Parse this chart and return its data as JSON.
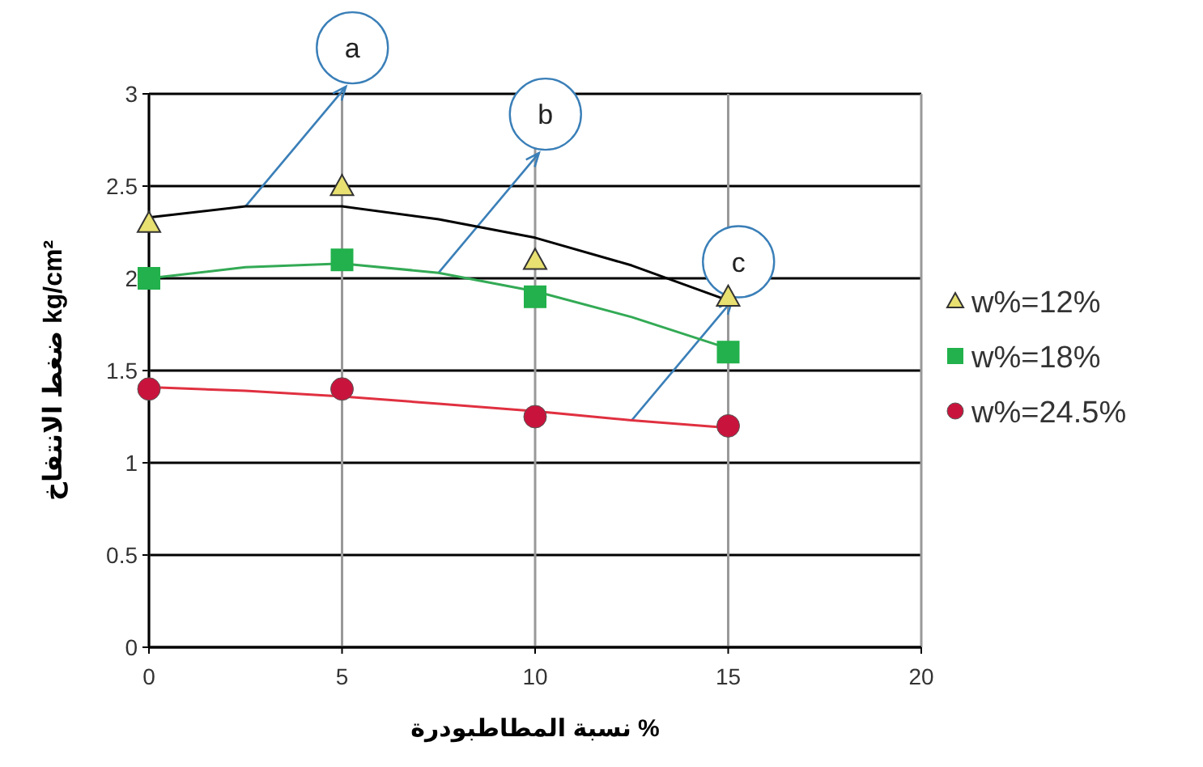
{
  "chart_data": {
    "type": "scatter",
    "xlabel": "نسبة المطاطبودرة %",
    "ylabel": "ضغط الانتفاخ kg/cm²",
    "x": [
      0,
      5,
      10,
      15
    ],
    "series": [
      {
        "name": "w%=12%",
        "marker": "triangle",
        "color": "#e8e070",
        "values": [
          2.3,
          2.5,
          2.1,
          1.9
        ]
      },
      {
        "name": "w%=18%",
        "marker": "square",
        "color": "#22b14c",
        "values": [
          2.0,
          2.1,
          1.9,
          1.6
        ]
      },
      {
        "name": "w%=24.5%",
        "marker": "circle",
        "color": "#c8143c",
        "values": [
          1.4,
          1.4,
          1.25,
          1.2
        ]
      },
      {
        "type": "line",
        "marker": "none",
        "color": "#000000",
        "x": [
          0,
          2.5,
          5,
          7.5,
          10,
          12.5,
          15
        ],
        "values": [
          2.33,
          2.39,
          2.39,
          2.32,
          2.22,
          2.07,
          1.88
        ]
      },
      {
        "type": "line",
        "marker": "none",
        "color": "#33aa55",
        "x": [
          0,
          2.5,
          5,
          7.5,
          10,
          12.5,
          15
        ],
        "values": [
          2.0,
          2.06,
          2.08,
          2.03,
          1.93,
          1.79,
          1.62
        ]
      },
      {
        "type": "line",
        "marker": "none",
        "color": "#e03040",
        "x": [
          0,
          2.5,
          5,
          7.5,
          10,
          12.5,
          15
        ],
        "values": [
          1.41,
          1.39,
          1.36,
          1.32,
          1.28,
          1.23,
          1.19
        ]
      }
    ],
    "annotations": [
      {
        "text": "a",
        "x": 2.5,
        "y": 2.39
      },
      {
        "text": "b",
        "x": 7.5,
        "y": 2.03
      },
      {
        "text": "c",
        "x": 12.5,
        "y": 1.23
      }
    ],
    "xlim": [
      0,
      20
    ],
    "xticks": [
      0,
      5,
      10,
      15,
      20
    ],
    "ylim": [
      0,
      3
    ],
    "yticks": [
      0,
      0.5,
      1,
      1.5,
      2,
      2.5,
      3
    ],
    "grid": true,
    "legend": "right",
    "line_style": "solid"
  }
}
